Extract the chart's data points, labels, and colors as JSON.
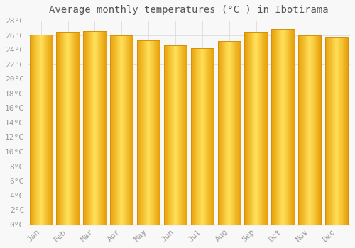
{
  "title": "Average monthly temperatures (°C ) in Ibotirama",
  "months": [
    "Jan",
    "Feb",
    "Mar",
    "Apr",
    "May",
    "Jun",
    "Jul",
    "Aug",
    "Sep",
    "Oct",
    "Nov",
    "Dec"
  ],
  "temperatures": [
    26.1,
    26.4,
    26.5,
    26.0,
    25.3,
    24.6,
    24.2,
    25.2,
    26.4,
    26.8,
    26.0,
    25.8
  ],
  "bar_color_main": "#FFCC44",
  "bar_color_edge": "#D4900A",
  "background_color": "#F8F8F8",
  "grid_color": "#E0E0E0",
  "ylim": [
    0,
    28
  ],
  "ytick_step": 2,
  "title_fontsize": 10,
  "tick_fontsize": 8,
  "font_family": "monospace"
}
